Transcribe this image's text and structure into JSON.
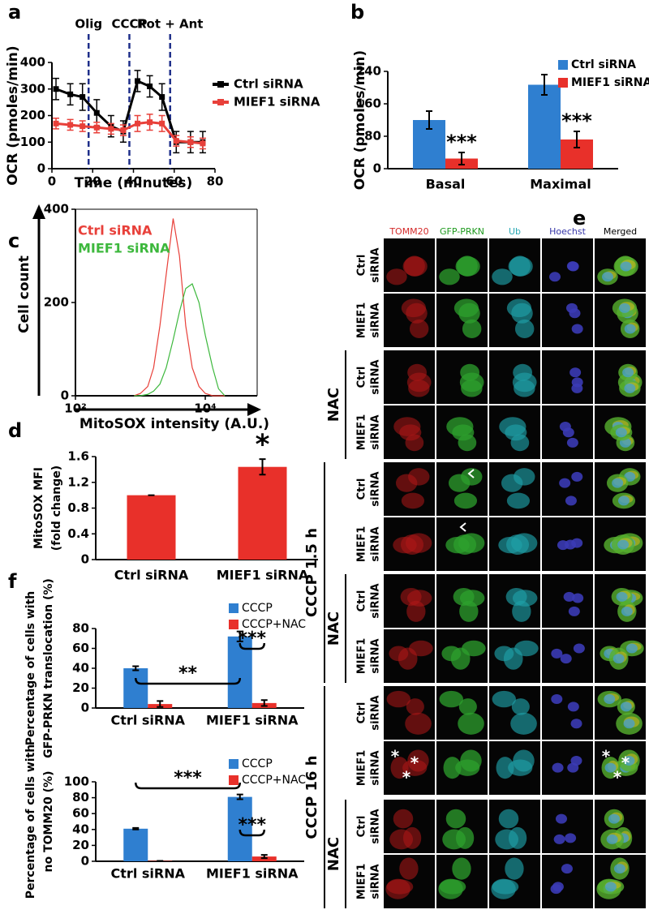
{
  "chart_data": [
    {
      "type": "line",
      "panel": "a",
      "ylabel": "OCR (pmoles/min)",
      "xlabel": "Time (minutes)",
      "x": [
        2,
        9,
        15,
        22,
        29,
        35,
        42,
        48,
        54,
        61,
        68,
        74
      ],
      "series": [
        {
          "name": "Ctrl siRNA",
          "color": "#000000",
          "values": [
            300,
            280,
            270,
            210,
            160,
            140,
            330,
            310,
            270,
            100,
            100,
            100
          ],
          "errors": [
            40,
            40,
            50,
            50,
            40,
            40,
            40,
            40,
            50,
            40,
            40,
            40
          ]
        },
        {
          "name": "MIEF1 siRNA",
          "color": "#e8403a",
          "values": [
            170,
            165,
            160,
            155,
            150,
            145,
            170,
            175,
            170,
            105,
            100,
            95
          ],
          "errors": [
            20,
            20,
            20,
            20,
            20,
            20,
            30,
            30,
            30,
            20,
            20,
            20
          ]
        }
      ],
      "xlim": [
        0,
        80
      ],
      "ylim": [
        0,
        400
      ],
      "xticks": [
        0,
        20,
        40,
        60,
        80
      ],
      "yticks": [
        0,
        100,
        200,
        300,
        400
      ],
      "events": [
        {
          "x": 18,
          "label": "Olig"
        },
        {
          "x": 38,
          "label": "CCCP"
        },
        {
          "x": 58,
          "label": "Rot + Ant"
        }
      ]
    },
    {
      "type": "bar",
      "panel": "b",
      "ylabel": "OCR (pmoles/min)",
      "categories": [
        "Basal",
        "Maximal"
      ],
      "series": [
        {
          "name": "Ctrl siRNA",
          "color": "#2f7fd0",
          "values": [
            120,
            207
          ],
          "errors": [
            22,
            25
          ]
        },
        {
          "name": "MIEF1 siRNA",
          "color": "#e8302a",
          "values": [
            25,
            72
          ],
          "errors": [
            15,
            20
          ],
          "significance": [
            "***",
            "***"
          ]
        }
      ],
      "ylim": [
        0,
        240
      ],
      "yticks": [
        0,
        80,
        160,
        240
      ]
    },
    {
      "type": "line",
      "panel": "c",
      "ylabel": "Cell count",
      "xlabel": "MitoSOX  intensity (A.U.)",
      "xlog": true,
      "x": [
        800,
        1000,
        1300,
        1600,
        2000,
        2500,
        3200,
        4000,
        5000,
        6300,
        8000,
        10000,
        13000,
        16000,
        20000
      ],
      "series": [
        {
          "name": "Ctrl siRNA",
          "color": "#e8403a",
          "values": [
            0,
            5,
            20,
            60,
            150,
            260,
            380,
            300,
            150,
            60,
            20,
            5,
            0,
            0,
            0
          ]
        },
        {
          "name": "MIEF1 siRNA",
          "color": "#3db83d",
          "values": [
            0,
            0,
            3,
            10,
            25,
            60,
            120,
            180,
            230,
            240,
            200,
            130,
            60,
            15,
            0
          ]
        }
      ],
      "xlim": [
        100,
        63000
      ],
      "ylim": [
        0,
        400
      ],
      "xticks": [
        {
          "value": 100,
          "label": "10²"
        },
        {
          "value": 10000,
          "label": "10⁴"
        }
      ],
      "yticks": [
        0,
        200,
        400
      ]
    },
    {
      "type": "bar",
      "panel": "d",
      "ylabel": [
        "MitoSOX MFI",
        "(fold change)"
      ],
      "categories": [
        "Ctrl siRNA",
        "MIEF1 siRNA"
      ],
      "values": [
        1,
        1.44
      ],
      "errors": [
        0,
        0.12
      ],
      "color": "#e8302a",
      "significance": "*",
      "ylim": [
        0,
        1.6
      ],
      "yticks": [
        0,
        0.4,
        0.8,
        1.2,
        1.6
      ]
    },
    {
      "type": "bar",
      "panel": "f",
      "ylabel": [
        "Percentage of cells with",
        "GFP-PRKN translocation (%)"
      ],
      "categories": [
        "Ctrl siRNA",
        "MIEF1 siRNA"
      ],
      "series": [
        {
          "name": "CCCP",
          "color": "#2f7fd0",
          "values": [
            40,
            72
          ],
          "errors": [
            2,
            5
          ]
        },
        {
          "name": "CCCP+NAC",
          "color": "#e8302a",
          "values": [
            4,
            5
          ],
          "errors": [
            3,
            3
          ]
        }
      ],
      "significance": [
        "**",
        "***"
      ],
      "ylim": [
        0,
        80
      ],
      "yticks": [
        0,
        20,
        40,
        60,
        80
      ]
    },
    {
      "type": "bar",
      "ylabel": [
        "Percentage of cells with",
        "no TOMM20 (%)"
      ],
      "categories": [
        "Ctrl siRNA",
        "MIEF1 siRNA"
      ],
      "series": [
        {
          "name": "CCCP",
          "color": "#2f7fd0",
          "values": [
            41,
            81
          ],
          "errors": [
            1,
            3
          ]
        },
        {
          "name": "CCCP+NAC",
          "color": "#e8302a",
          "values": [
            0.5,
            6
          ],
          "errors": [
            0,
            2
          ]
        }
      ],
      "significance": [
        "***",
        "***"
      ],
      "ylim": [
        0,
        100
      ],
      "yticks": [
        0,
        20,
        40,
        60,
        80,
        100
      ]
    }
  ],
  "image_panel": {
    "panel": "e",
    "columns": [
      "TOMM20",
      "GFP-PRKN",
      "Ub",
      "Hoechst",
      "Merged"
    ],
    "rows": [
      [
        "Ctrl",
        "siRNA"
      ],
      [
        "MIEF1",
        "siRNA"
      ],
      [
        "Ctrl",
        "siRNA"
      ],
      [
        "MIEF1",
        "siRNA"
      ],
      [
        "Ctrl",
        "siRNA"
      ],
      [
        "MIEF1",
        "siRNA"
      ],
      [
        "Ctrl",
        "siRNA"
      ],
      [
        "MIEF1",
        "siRNA"
      ],
      [
        "Ctrl",
        "siRNA"
      ],
      [
        "MIEF1",
        "siRNA"
      ],
      [
        "Ctrl",
        "siRNA"
      ],
      [
        "MIEF1",
        "siRNA"
      ]
    ],
    "groups": [
      "NAC",
      "CCCP 1.5 h",
      "NAC",
      "CCCP 16 h",
      "NAC"
    ],
    "asterisk": "*"
  }
}
